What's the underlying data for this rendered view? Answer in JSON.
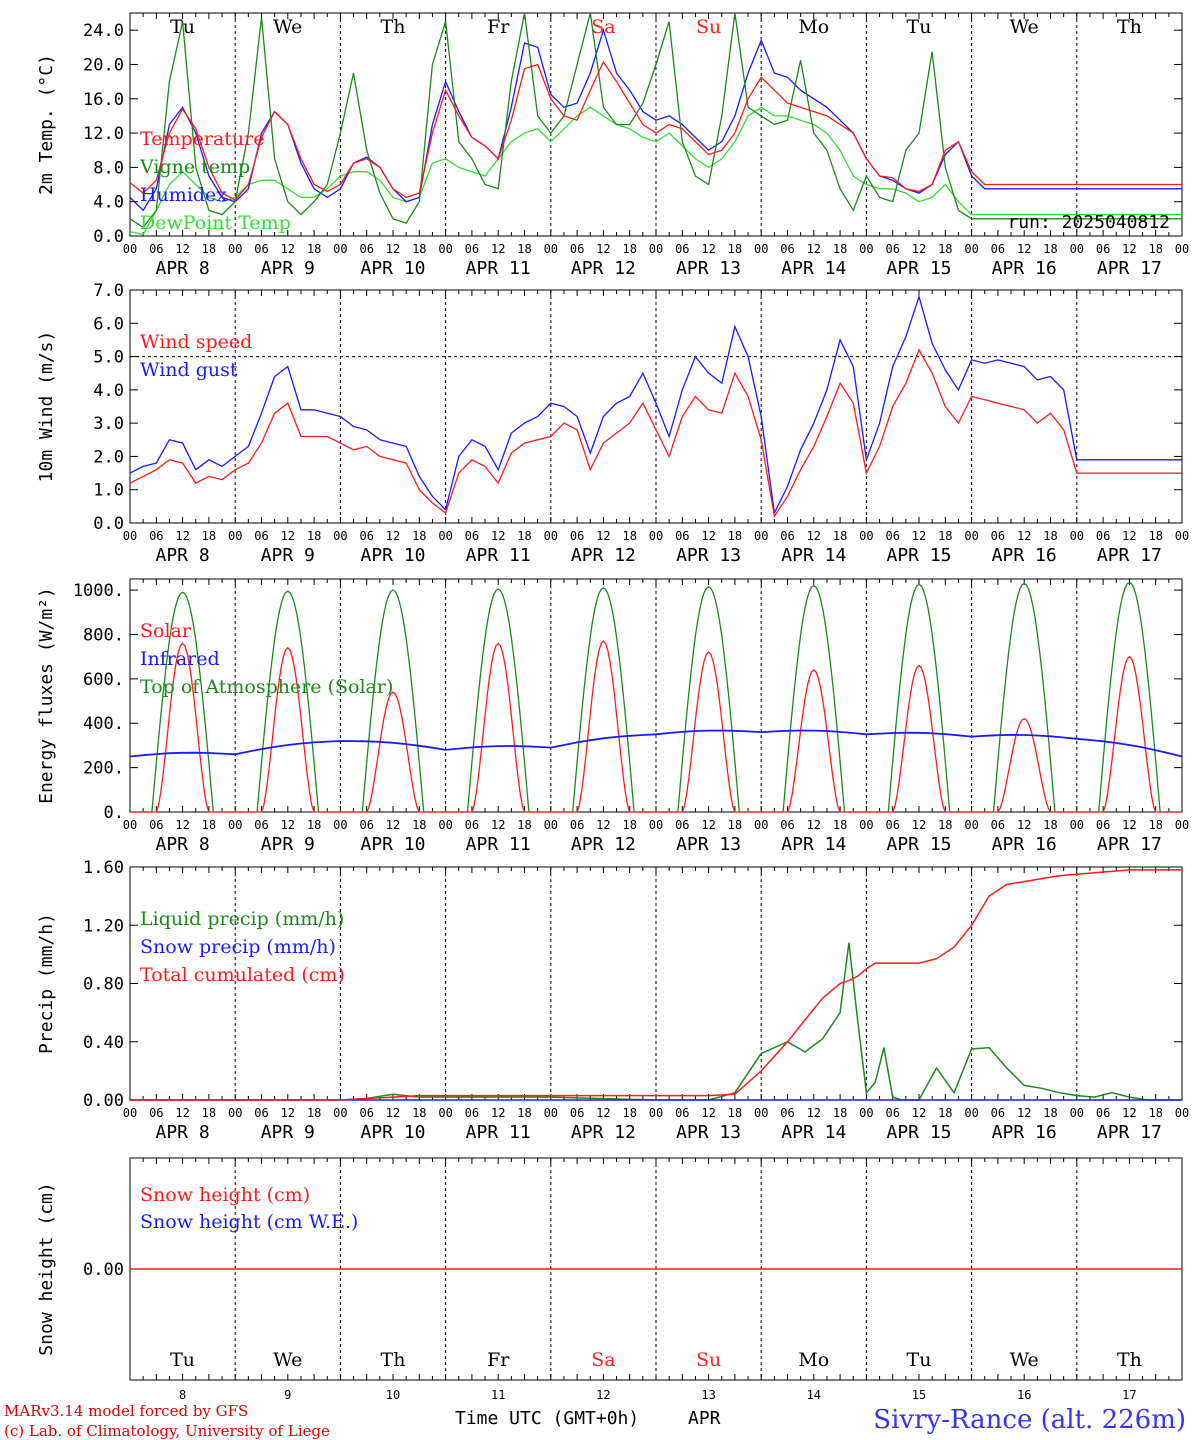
{
  "days": [
    {
      "abbr": "Tu",
      "num": "8",
      "label": "APR  8",
      "weekend": false
    },
    {
      "abbr": "We",
      "num": "9",
      "label": "APR  9",
      "weekend": false
    },
    {
      "abbr": "Th",
      "num": "10",
      "label": "APR 10",
      "weekend": false
    },
    {
      "abbr": "Fr",
      "num": "11",
      "label": "APR 11",
      "weekend": false
    },
    {
      "abbr": "Sa",
      "num": "12",
      "label": "APR 12",
      "weekend": true
    },
    {
      "abbr": "Su",
      "num": "13",
      "label": "APR 13",
      "weekend": true
    },
    {
      "abbr": "Mo",
      "num": "14",
      "label": "APR 14",
      "weekend": false
    },
    {
      "abbr": "Tu",
      "num": "15",
      "label": "APR 15",
      "weekend": false
    },
    {
      "abbr": "We",
      "num": "16",
      "label": "APR 16",
      "weekend": false
    },
    {
      "abbr": "Th",
      "num": "17",
      "label": "APR 17",
      "weekend": false
    }
  ],
  "hour_ticks": [
    "00",
    "06",
    "12",
    "18"
  ],
  "colors": {
    "red": "#ff1a1a",
    "green": "#1a8a1a",
    "blue": "#1a1aff",
    "lightgreen": "#33dd33",
    "weekend": "#ff2020"
  },
  "footer": {
    "model": "MARv3.14 model forced by GFS",
    "lab": "(c) Lab. of Climatology, University of Liege",
    "time_label": "Time UTC (GMT+0h)",
    "month": "APR",
    "station": "Sivry-Rance (alt. 226m)"
  },
  "chart_data": [
    {
      "type": "line",
      "ylabel": "2m Temp. (°C)",
      "ylim": [
        0,
        26
      ],
      "yticks": [
        "0.0",
        "4.0",
        "8.0",
        "12.0",
        "16.0",
        "20.0",
        "24.0"
      ],
      "ytick_values": [
        0,
        4,
        8,
        12,
        16,
        20,
        24
      ],
      "ref_line": 0,
      "annotation": "run: 2025040812",
      "x_hours": [
        0,
        3,
        6,
        9,
        12,
        15,
        18,
        21,
        24,
        27,
        30,
        33,
        36,
        39,
        42,
        45,
        48,
        51,
        54,
        57,
        60,
        63,
        66,
        69,
        72,
        75,
        78,
        81,
        84,
        87,
        90,
        93,
        96,
        99,
        102,
        105,
        108,
        111,
        114,
        117,
        120,
        123,
        126,
        129,
        132,
        135,
        138,
        141,
        144,
        147,
        150,
        153,
        156,
        159,
        162,
        165,
        168,
        171,
        174,
        177,
        180,
        183,
        186,
        189,
        192,
        195,
        198,
        201,
        204,
        207,
        210,
        213,
        216,
        219,
        222,
        225,
        228,
        231,
        234,
        237,
        240
      ],
      "series": [
        {
          "name": "Temperature",
          "color": "red",
          "values": [
            6.2,
            5.0,
            6.5,
            12.0,
            14.8,
            12.5,
            8.0,
            5.0,
            4.2,
            6.0,
            11.5,
            14.5,
            13.0,
            9.0,
            6.0,
            5.2,
            6.0,
            8.5,
            9.0,
            8.0,
            5.5,
            4.5,
            5.0,
            12.0,
            17.0,
            14.0,
            11.5,
            10.5,
            9.0,
            13.5,
            19.5,
            20.0,
            16.0,
            14.0,
            13.5,
            17.0,
            20.3,
            18.0,
            15.5,
            13.0,
            12.0,
            13.0,
            12.5,
            11.0,
            9.5,
            10.0,
            12.0,
            16.0,
            18.5,
            17.0,
            15.5,
            15.0,
            14.5,
            14.0,
            13.0,
            12.0,
            9.0,
            7.0,
            6.8,
            5.5,
            5.2,
            6.0,
            10.0,
            11.0,
            7.5,
            6.0,
            6.0,
            6.0,
            6.0,
            6.0,
            6.0,
            6.0,
            6.0,
            6.0,
            6.0,
            6.0,
            6.0,
            6.0,
            6.0,
            6.0,
            6.0
          ]
        },
        {
          "name": "Vigne temp",
          "color": "green",
          "values": [
            2.0,
            1.0,
            3.0,
            18.0,
            25.0,
            8.0,
            3.0,
            2.5,
            4.0,
            12.0,
            25.5,
            9.0,
            4.0,
            2.5,
            4.0,
            6.0,
            12.0,
            19.0,
            10.0,
            5.0,
            2.0,
            1.5,
            4.0,
            20.0,
            25.0,
            11.0,
            9.0,
            6.0,
            5.5,
            18.0,
            26.0,
            14.0,
            12.0,
            14.0,
            20.0,
            26.0,
            15.0,
            13.0,
            13.0,
            15.5,
            20.0,
            25.0,
            11.0,
            7.0,
            6.0,
            14.0,
            26.0,
            15.0,
            14.0,
            13.0,
            13.5,
            20.5,
            12.0,
            10.0,
            5.5,
            3.0,
            7.0,
            4.5,
            4.0,
            10.0,
            12.0,
            21.5,
            8.0,
            3.0,
            2.0,
            2.0,
            2.0,
            2.0,
            2.0,
            2.0,
            2.0,
            2.0,
            2.0,
            2.0,
            2.0,
            2.0,
            2.0,
            2.0,
            2.0,
            2.0,
            2.0
          ]
        },
        {
          "name": "Humidex",
          "color": "blue",
          "values": [
            4.5,
            3.0,
            5.5,
            13.0,
            15.0,
            12.0,
            7.0,
            4.5,
            4.0,
            5.5,
            12.0,
            14.5,
            13.0,
            8.5,
            5.5,
            4.5,
            5.5,
            8.5,
            9.2,
            8.0,
            5.5,
            4.0,
            4.5,
            13.0,
            18.0,
            14.5,
            11.5,
            10.5,
            9.0,
            15.0,
            22.5,
            22.0,
            16.5,
            15.0,
            15.5,
            19.0,
            24.0,
            19.0,
            17.0,
            14.5,
            13.5,
            14.0,
            13.0,
            11.5,
            10.0,
            11.0,
            14.0,
            19.0,
            22.8,
            19.0,
            18.5,
            17.0,
            16.0,
            15.0,
            13.5,
            12.0,
            9.0,
            7.0,
            6.5,
            5.5,
            5.0,
            6.0,
            9.5,
            11.0,
            7.0,
            5.5,
            5.5,
            5.5,
            5.5,
            5.5,
            5.5,
            5.5,
            5.5,
            5.5,
            5.5,
            5.5,
            5.5,
            5.5,
            5.5,
            5.5,
            5.5
          ]
        },
        {
          "name": "DewPoint Temp",
          "color": "lightgreen",
          "values": [
            0.5,
            0.2,
            3.0,
            6.0,
            7.5,
            6.0,
            4.5,
            4.0,
            4.5,
            6.0,
            6.5,
            6.5,
            5.5,
            4.5,
            4.5,
            5.5,
            7.0,
            7.5,
            7.5,
            6.5,
            4.5,
            4.0,
            4.5,
            8.5,
            9.0,
            8.0,
            7.5,
            7.0,
            9.0,
            11.0,
            12.0,
            12.5,
            11.0,
            12.5,
            14.0,
            15.0,
            14.0,
            13.0,
            12.5,
            11.5,
            11.0,
            12.0,
            10.5,
            9.0,
            8.0,
            9.0,
            11.0,
            14.0,
            15.0,
            14.0,
            14.0,
            13.5,
            13.0,
            12.0,
            10.0,
            7.0,
            6.0,
            5.5,
            5.5,
            5.0,
            4.0,
            4.5,
            6.0,
            4.0,
            2.5,
            2.5,
            2.5,
            2.5,
            2.5,
            2.5,
            2.5,
            2.5,
            2.5,
            2.5,
            2.5,
            2.5,
            2.5,
            2.5,
            2.5,
            2.5,
            2.5
          ]
        }
      ]
    },
    {
      "type": "line",
      "ylabel": "10m Wind (m/s)",
      "ylim": [
        0,
        7
      ],
      "yticks": [
        "0.0",
        "1.0",
        "2.0",
        "3.0",
        "4.0",
        "5.0",
        "6.0",
        "7.0"
      ],
      "ytick_values": [
        0,
        1,
        2,
        3,
        4,
        5,
        6,
        7
      ],
      "ref_line": 5,
      "x_hours": [
        0,
        3,
        6,
        9,
        12,
        15,
        18,
        21,
        24,
        27,
        30,
        33,
        36,
        39,
        42,
        45,
        48,
        51,
        54,
        57,
        60,
        63,
        66,
        69,
        72,
        75,
        78,
        81,
        84,
        87,
        90,
        93,
        96,
        99,
        102,
        105,
        108,
        111,
        114,
        117,
        120,
        123,
        126,
        129,
        132,
        135,
        138,
        141,
        144,
        147,
        150,
        153,
        156,
        159,
        162,
        165,
        168,
        171,
        174,
        177,
        180,
        183,
        186,
        189,
        192,
        195,
        198,
        201,
        204,
        207,
        210,
        213,
        216,
        219,
        222,
        225,
        228,
        231,
        234,
        237,
        240
      ],
      "series": [
        {
          "name": "Wind speed",
          "color": "red",
          "values": [
            1.2,
            1.4,
            1.6,
            1.9,
            1.8,
            1.2,
            1.4,
            1.3,
            1.6,
            1.8,
            2.4,
            3.3,
            3.6,
            2.6,
            2.6,
            2.6,
            2.4,
            2.2,
            2.3,
            2.0,
            1.9,
            1.8,
            1.0,
            0.6,
            0.3,
            1.5,
            1.9,
            1.7,
            1.2,
            2.1,
            2.4,
            2.5,
            2.6,
            3.0,
            2.8,
            1.6,
            2.4,
            2.7,
            3.0,
            3.6,
            2.8,
            2.0,
            3.2,
            3.8,
            3.4,
            3.3,
            4.5,
            3.8,
            2.5,
            0.2,
            0.8,
            1.6,
            2.3,
            3.2,
            4.2,
            3.6,
            1.5,
            2.3,
            3.5,
            4.2,
            5.2,
            4.5,
            3.5,
            3.0,
            3.8,
            3.7,
            3.6,
            3.5,
            3.4,
            3.0,
            3.3,
            2.8,
            1.5,
            1.5,
            1.5,
            1.5,
            1.5,
            1.5,
            1.5,
            1.5,
            1.5
          ]
        },
        {
          "name": "Wind gust",
          "color": "blue",
          "values": [
            1.5,
            1.7,
            1.8,
            2.5,
            2.4,
            1.6,
            1.9,
            1.7,
            2.0,
            2.3,
            3.3,
            4.4,
            4.7,
            3.4,
            3.4,
            3.3,
            3.2,
            2.9,
            2.8,
            2.5,
            2.4,
            2.3,
            1.4,
            0.8,
            0.4,
            2.0,
            2.5,
            2.3,
            1.6,
            2.7,
            3.0,
            3.2,
            3.6,
            3.5,
            3.2,
            2.1,
            3.2,
            3.6,
            3.8,
            4.5,
            3.6,
            2.6,
            4.0,
            5.0,
            4.5,
            4.2,
            5.9,
            5.0,
            3.2,
            0.3,
            1.1,
            2.2,
            3.0,
            4.0,
            5.5,
            4.7,
            1.9,
            3.0,
            4.7,
            5.6,
            6.8,
            5.4,
            4.6,
            4.0,
            4.9,
            4.8,
            4.9,
            4.8,
            4.7,
            4.3,
            4.4,
            4.0,
            1.9,
            1.9,
            1.9,
            1.9,
            1.9,
            1.9,
            1.9,
            1.9,
            1.9
          ]
        }
      ]
    },
    {
      "type": "line",
      "ylabel": "Energy fluxes (W/m²)",
      "ylim": [
        0,
        1050
      ],
      "yticks": [
        "0.",
        "200.",
        "400.",
        "600.",
        "800.",
        "1000."
      ],
      "ytick_values": [
        0,
        200,
        400,
        600,
        800,
        1000
      ],
      "series": [
        {
          "name": "Solar",
          "color": "red",
          "daily_peaks": [
            760,
            740,
            540,
            760,
            770,
            720,
            640,
            660,
            420,
            700
          ]
        },
        {
          "name": "Infrared",
          "color": "blue",
          "daily_values": [
            250,
            260,
            320,
            280,
            290,
            350,
            360,
            350,
            340,
            330
          ],
          "end_value": 250
        },
        {
          "name": "Top of Atmosphere (Solar)",
          "color": "green",
          "daily_peaks": [
            990,
            995,
            1000,
            1005,
            1010,
            1015,
            1020,
            1025,
            1030,
            1035
          ]
        }
      ]
    },
    {
      "type": "line",
      "ylabel": "Precip (mm/h)",
      "ylim": [
        0,
        1.6
      ],
      "yticks": [
        "0.00",
        "0.40",
        "0.80",
        "1.20",
        "1.60"
      ],
      "ytick_values": [
        0,
        0.4,
        0.8,
        1.2,
        1.6
      ],
      "x_hours": [
        0,
        24,
        48,
        54,
        60,
        66,
        72,
        96,
        120,
        132,
        138,
        144,
        150,
        154,
        158,
        162,
        164,
        166,
        168,
        170,
        172,
        174,
        176,
        180,
        184,
        188,
        192,
        196,
        200,
        204,
        208,
        212,
        216,
        220,
        224,
        228,
        232,
        236,
        240
      ],
      "series": [
        {
          "name": "Liquid precip (mm/h)",
          "color": "green",
          "values": [
            0,
            0,
            0,
            0.01,
            0.04,
            0.02,
            0.02,
            0.02,
            0,
            0,
            0.05,
            0.32,
            0.4,
            0.33,
            0.42,
            0.6,
            1.08,
            0.55,
            0.05,
            0.12,
            0.36,
            0.02,
            0,
            0,
            0.22,
            0.05,
            0.35,
            0.36,
            0.22,
            0.1,
            0.08,
            0.05,
            0.03,
            0.02,
            0.05,
            0.02,
            0,
            0,
            0
          ]
        },
        {
          "name": "Snow precip (mm/h)",
          "color": "blue",
          "values": [
            0,
            0,
            0,
            0,
            0,
            0,
            0,
            0,
            0,
            0,
            0,
            0,
            0,
            0,
            0,
            0,
            0,
            0,
            0,
            0,
            0,
            0,
            0,
            0,
            0,
            0,
            0,
            0,
            0,
            0,
            0,
            0,
            0,
            0,
            0,
            0,
            0,
            0,
            0
          ]
        },
        {
          "name": "Total cumulated (cm)",
          "color": "red",
          "values": [
            0,
            0,
            0,
            0.01,
            0.02,
            0.03,
            0.03,
            0.03,
            0.03,
            0.03,
            0.04,
            0.2,
            0.4,
            0.55,
            0.7,
            0.8,
            0.82,
            0.85,
            0.9,
            0.94,
            0.94,
            0.94,
            0.94,
            0.94,
            0.97,
            1.05,
            1.2,
            1.4,
            1.48,
            1.5,
            1.52,
            1.54,
            1.55,
            1.56,
            1.57,
            1.58,
            1.58,
            1.58,
            1.58
          ]
        }
      ]
    },
    {
      "type": "line",
      "ylabel": "Snow height (cm)",
      "yticks": [
        "0.00"
      ],
      "series": [
        {
          "name": "Snow height (cm)",
          "color": "red",
          "values": [
            0,
            0
          ]
        },
        {
          "name": "Snow height (cm W.E.)",
          "color": "blue",
          "values": [
            0,
            0
          ]
        }
      ]
    }
  ]
}
